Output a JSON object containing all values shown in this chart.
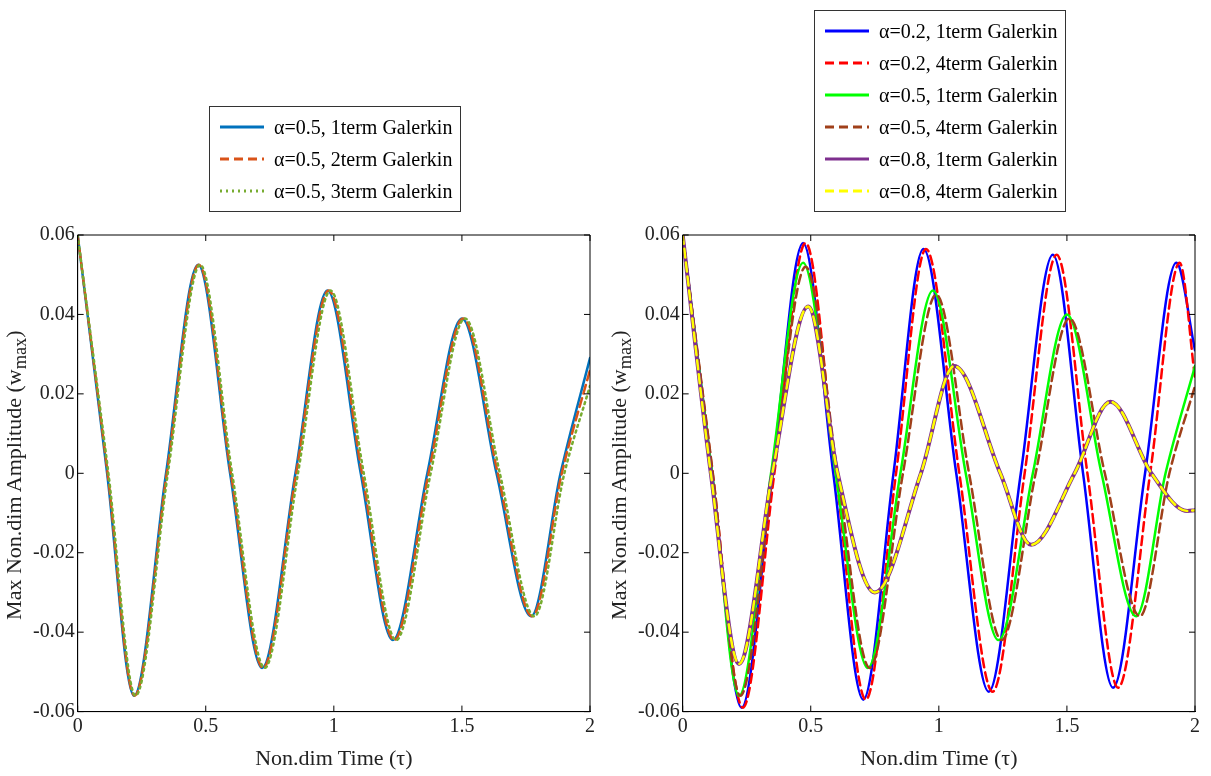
{
  "chart_data": [
    {
      "type": "line",
      "xlabel": "Non.dim Time (τ)",
      "ylabel": "Max Non.dim Amplitude (w$_{max}$)",
      "xlim": [
        0,
        2
      ],
      "xticks": [
        0,
        0.5,
        1,
        1.5,
        2
      ],
      "ylim": [
        -0.06,
        0.06
      ],
      "yticks": [
        -0.06,
        -0.04,
        -0.02,
        0,
        0.02,
        0.04,
        0.06
      ],
      "grid": false,
      "legend": "top",
      "marker": "none",
      "series": [
        {
          "name": "α=0.5, 1term Galerkin",
          "color": "#0072bd",
          "line_style": "solid",
          "x": [
            0,
            0.115,
            0.22,
            0.345,
            0.47,
            0.595,
            0.72,
            0.85,
            0.975,
            1.105,
            1.23,
            1.365,
            1.5,
            1.635,
            1.77,
            1.885,
            2
          ],
          "values": [
            0.06,
            0,
            -0.056,
            0,
            0.0525,
            0,
            -0.049,
            0,
            0.046,
            0,
            -0.042,
            0,
            0.039,
            0,
            -0.036,
            0,
            0.029
          ]
        },
        {
          "name": "α=0.5, 2term Galerkin",
          "color": "#d95319",
          "line_style": "dashed",
          "x": [
            0,
            0.117,
            0.222,
            0.348,
            0.473,
            0.598,
            0.724,
            0.853,
            0.98,
            1.11,
            1.235,
            1.37,
            1.505,
            1.64,
            1.775,
            1.89,
            2
          ],
          "values": [
            0.06,
            0,
            -0.056,
            0,
            0.0525,
            0,
            -0.049,
            0,
            0.046,
            0,
            -0.042,
            0,
            0.039,
            0,
            -0.036,
            0,
            0.026
          ]
        },
        {
          "name": "α=0.5, 3term Galerkin",
          "color": "#77ac30",
          "line_style": "dotted",
          "x": [
            0,
            0.12,
            0.226,
            0.352,
            0.478,
            0.603,
            0.73,
            0.86,
            0.987,
            1.117,
            1.243,
            1.378,
            1.512,
            1.648,
            1.783,
            1.9,
            2
          ],
          "values": [
            0.06,
            0,
            -0.056,
            0,
            0.0525,
            0,
            -0.049,
            0,
            0.046,
            0,
            -0.042,
            0,
            0.039,
            0,
            -0.036,
            0,
            0.022
          ]
        }
      ]
    },
    {
      "type": "line",
      "xlabel": "Non.dim Time (τ)",
      "ylabel": "Max Non.dim Amplitude (w$_{max}$)",
      "xlim": [
        0,
        2
      ],
      "xticks": [
        0,
        0.5,
        1,
        1.5,
        2
      ],
      "ylim": [
        -0.06,
        0.06
      ],
      "yticks": [
        -0.06,
        -0.04,
        -0.02,
        0,
        0.02,
        0.04,
        0.06
      ],
      "grid": false,
      "legend": "top",
      "marker": "none",
      "series": [
        {
          "name": "α=0.2, 1term Galerkin",
          "color": "#0000ff",
          "line_style": "solid",
          "x": [
            0,
            0.115,
            0.23,
            0.35,
            0.47,
            0.588,
            0.705,
            0.823,
            0.94,
            1.068,
            1.195,
            1.32,
            1.445,
            1.563,
            1.68,
            1.805,
            1.927,
            2
          ],
          "values": [
            0.06,
            0,
            -0.059,
            0,
            0.058,
            0,
            -0.057,
            0,
            0.0565,
            0,
            -0.055,
            0,
            0.055,
            0,
            -0.054,
            0,
            0.053,
            0.031
          ]
        },
        {
          "name": "α=0.2, 4term Galerkin",
          "color": "#ff0000",
          "line_style": "dashed",
          "x": [
            0,
            0.117,
            0.235,
            0.358,
            0.48,
            0.598,
            0.715,
            0.833,
            0.95,
            1.08,
            1.21,
            1.335,
            1.46,
            1.58,
            1.7,
            1.825,
            1.94,
            2
          ],
          "values": [
            0.06,
            0,
            -0.059,
            0,
            0.058,
            0,
            -0.057,
            0,
            0.0565,
            0,
            -0.055,
            0,
            0.055,
            0,
            -0.054,
            0,
            0.053,
            0.024
          ]
        },
        {
          "name": "α=0.5, 1term Galerkin",
          "color": "#00ff00",
          "line_style": "solid",
          "x": [
            0,
            0.115,
            0.22,
            0.345,
            0.47,
            0.597,
            0.723,
            0.85,
            0.977,
            1.105,
            1.233,
            1.367,
            1.5,
            1.635,
            1.77,
            1.885,
            2
          ],
          "values": [
            0.06,
            0,
            -0.056,
            0,
            0.053,
            0,
            -0.049,
            0,
            0.046,
            0,
            -0.042,
            0,
            0.04,
            0,
            -0.036,
            0,
            0.027
          ]
        },
        {
          "name": "α=0.5, 4term Galerkin",
          "color": "#a0401a",
          "line_style": "dashed",
          "x": [
            0,
            0.118,
            0.225,
            0.353,
            0.48,
            0.605,
            0.73,
            0.86,
            0.99,
            1.118,
            1.245,
            1.378,
            1.51,
            1.648,
            1.785,
            1.9,
            2
          ],
          "values": [
            0.06,
            0,
            -0.056,
            0,
            0.052,
            0,
            -0.049,
            0,
            0.045,
            0,
            -0.042,
            0,
            0.039,
            0,
            -0.036,
            0,
            0.022
          ]
        },
        {
          "name": "α=0.8, 1term Galerkin",
          "color": "#7e2f8e",
          "line_style": "solid",
          "x": [
            0,
            0.11,
            0.22,
            0.35,
            0.49,
            0.605,
            0.75,
            0.93,
            1.06,
            1.24,
            1.36,
            1.53,
            1.67,
            1.83,
            1.97,
            2
          ],
          "values": [
            0.06,
            0,
            -0.048,
            0,
            0.042,
            0,
            -0.03,
            0,
            0.027,
            0,
            -0.018,
            0,
            0.018,
            0,
            -0.0095,
            -0.0093
          ]
        },
        {
          "name": "α=0.8, 4term Galerkin",
          "color": "#ffff00",
          "line_style": "dashed",
          "x": [
            0,
            0.11,
            0.22,
            0.35,
            0.49,
            0.605,
            0.75,
            0.93,
            1.06,
            1.24,
            1.36,
            1.53,
            1.67,
            1.83,
            1.97,
            2
          ],
          "values": [
            0.06,
            0,
            -0.048,
            0,
            0.042,
            0,
            -0.03,
            0,
            0.027,
            0,
            -0.018,
            0,
            0.018,
            0,
            -0.0095,
            -0.0093
          ]
        }
      ]
    }
  ]
}
